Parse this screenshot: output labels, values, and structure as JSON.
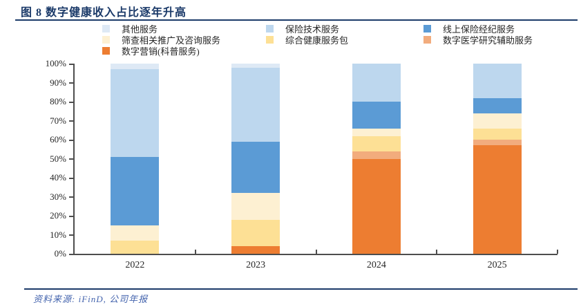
{
  "title": "图 8 数字健康收入占比逐年升高",
  "source_note": "资料来源: iFinD, 公司年报",
  "colors": {
    "title_navy": "#1B3A69",
    "source_blue": "#4565AE",
    "axis_gray": "#4d4d4d"
  },
  "chart_data": {
    "type": "bar",
    "stacked": true,
    "percent": true,
    "title": "数字健康收入占比逐年升高",
    "categories": [
      "2022",
      "2023",
      "2024",
      "2025"
    ],
    "series": [
      {
        "name": "数字营销(科普服务)",
        "color": "#ED7D31",
        "values": [
          0,
          4,
          50,
          57
        ]
      },
      {
        "name": "数字医学研究辅助服务",
        "color": "#F2AC7D",
        "values": [
          0,
          0,
          4,
          3
        ]
      },
      {
        "name": "综合健康服务包",
        "color": "#FDE095",
        "values": [
          7,
          14,
          8,
          6
        ]
      },
      {
        "name": "筛查相关推广及咨询服务",
        "color": "#FDF0D2",
        "values": [
          8,
          14,
          4,
          8
        ]
      },
      {
        "name": "线上保险经纪服务",
        "color": "#5B9BD5",
        "values": [
          36,
          27,
          14,
          8
        ]
      },
      {
        "name": "保险技术服务",
        "color": "#BDD7EE",
        "values": [
          46,
          39,
          20,
          18
        ]
      },
      {
        "name": "其他服务",
        "color": "#DEE9F5",
        "values": [
          3,
          2,
          0,
          0
        ]
      }
    ],
    "y_tick_labels": [
      "100%",
      "90%",
      "80%",
      "70%",
      "60%",
      "50%",
      "40%",
      "30%",
      "20%",
      "10%",
      "0%"
    ],
    "ylim": [
      0,
      100
    ],
    "grid": false,
    "legend_position": "top",
    "legend_columns": [
      [
        6,
        3,
        0
      ],
      [
        5,
        2
      ],
      [
        4,
        1
      ]
    ]
  }
}
